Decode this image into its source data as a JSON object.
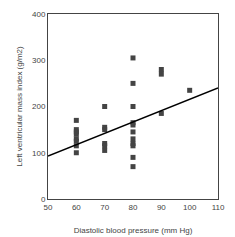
{
  "chart_data": {
    "type": "scatter",
    "xlabel": "Diastolic blood pressure (mm Hg)",
    "ylabel": "Left ventricular mass index (g/m2)",
    "xlim": [
      50,
      110
    ],
    "ylim": [
      0,
      400
    ],
    "xticks": [
      50,
      60,
      70,
      80,
      90,
      100,
      110
    ],
    "yticks": [
      0,
      100,
      200,
      300,
      400
    ],
    "grid": false,
    "series": [
      {
        "type": "scatter",
        "marker": "square",
        "color": "#444444",
        "x": [
          60,
          60,
          60,
          60,
          60,
          60,
          60,
          60,
          70,
          70,
          70,
          70,
          70,
          70,
          80,
          80,
          80,
          80,
          80,
          80,
          80,
          80,
          80,
          80,
          80,
          90,
          90,
          90,
          100
        ],
        "values": [
          170,
          150,
          145,
          140,
          130,
          125,
          115,
          100,
          200,
          155,
          150,
          120,
          115,
          105,
          305,
          250,
          200,
          165,
          160,
          145,
          130,
          120,
          115,
          90,
          70,
          280,
          270,
          185,
          235
        ]
      },
      {
        "type": "line",
        "line_style": "solid",
        "color": "#000000",
        "x": [
          50,
          110
        ],
        "values": [
          93,
          240
        ]
      }
    ]
  }
}
